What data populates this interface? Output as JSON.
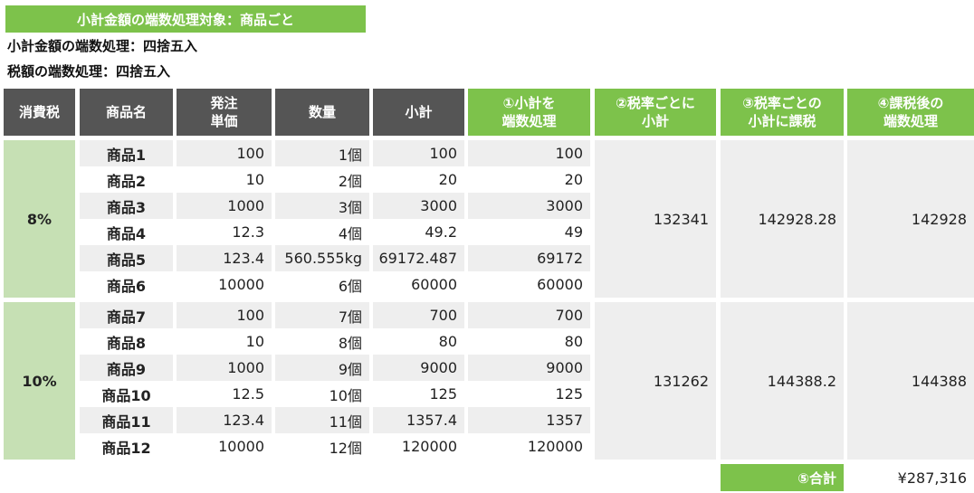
{
  "header": {
    "banner": "小計金額の端数処理対象：商品ごと",
    "line1": "小計金額の端数処理：四捨五入",
    "line2": "税額の端数処理：四捨五入"
  },
  "columns": {
    "tax": "消費税",
    "name": "商品名",
    "price": "発注\n単価",
    "qty": "数量",
    "subtotal": "小計",
    "c1": "①小計を\n端数処理",
    "c2": "②税率ごとに\n小計",
    "c3": "③税率ごとの\n小計に課税",
    "c4": "④課税後の\n端数処理"
  },
  "groups": [
    {
      "rate": "8%",
      "sum": "132341",
      "taxed": "142928.28",
      "rounded": "142928",
      "rows": [
        {
          "name": "商品1",
          "price": "100",
          "qty": "1個",
          "subtotal": "100",
          "rounded": "100"
        },
        {
          "name": "商品2",
          "price": "10",
          "qty": "2個",
          "subtotal": "20",
          "rounded": "20"
        },
        {
          "name": "商品3",
          "price": "1000",
          "qty": "3個",
          "subtotal": "3000",
          "rounded": "3000"
        },
        {
          "name": "商品4",
          "price": "12.3",
          "qty": "4個",
          "subtotal": "49.2",
          "rounded": "49"
        },
        {
          "name": "商品5",
          "price": "123.4",
          "qty": "560.555kg",
          "subtotal": "69172.487",
          "rounded": "69172"
        },
        {
          "name": "商品6",
          "price": "10000",
          "qty": "6個",
          "subtotal": "60000",
          "rounded": "60000"
        }
      ]
    },
    {
      "rate": "10%",
      "sum": "131262",
      "taxed": "144388.2",
      "rounded": "144388",
      "rows": [
        {
          "name": "商品7",
          "price": "100",
          "qty": "7個",
          "subtotal": "700",
          "rounded": "700"
        },
        {
          "name": "商品8",
          "price": "10",
          "qty": "8個",
          "subtotal": "80",
          "rounded": "80"
        },
        {
          "name": "商品9",
          "price": "1000",
          "qty": "9個",
          "subtotal": "9000",
          "rounded": "9000"
        },
        {
          "name": "商品10",
          "price": "12.5",
          "qty": "10個",
          "subtotal": "125",
          "rounded": "125"
        },
        {
          "name": "商品11",
          "price": "123.4",
          "qty": "11個",
          "subtotal": "1357.4",
          "rounded": "1357"
        },
        {
          "name": "商品12",
          "price": "10000",
          "qty": "12個",
          "subtotal": "120000",
          "rounded": "120000"
        }
      ]
    }
  ],
  "total": {
    "label": "⑤合計",
    "value": "¥287,316"
  },
  "colors": {
    "green": "#7dc24b",
    "light_green": "#c6e0b4",
    "header_gray": "#555555",
    "row_shade": "#eeeeee"
  }
}
